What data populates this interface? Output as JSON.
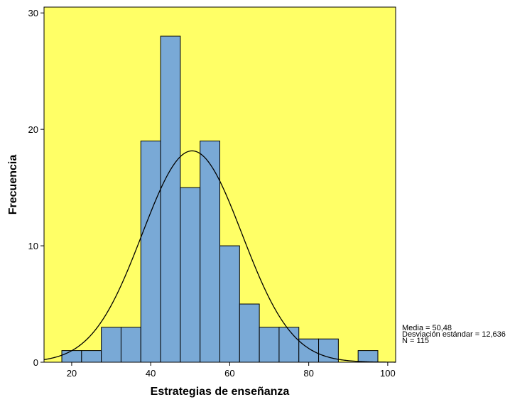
{
  "chart_data": {
    "type": "bar",
    "title": "",
    "xlabel": "Estrategias de enseñanza",
    "ylabel": "Frecuencia",
    "bin_width": 5,
    "bins": [
      {
        "start": 17.5,
        "end": 22.5,
        "count": 1
      },
      {
        "start": 22.5,
        "end": 27.5,
        "count": 1
      },
      {
        "start": 27.5,
        "end": 32.5,
        "count": 3
      },
      {
        "start": 32.5,
        "end": 37.5,
        "count": 3
      },
      {
        "start": 37.5,
        "end": 42.5,
        "count": 19
      },
      {
        "start": 42.5,
        "end": 47.5,
        "count": 28
      },
      {
        "start": 47.5,
        "end": 52.5,
        "count": 15
      },
      {
        "start": 52.5,
        "end": 57.5,
        "count": 19
      },
      {
        "start": 57.5,
        "end": 62.5,
        "count": 10
      },
      {
        "start": 62.5,
        "end": 67.5,
        "count": 5
      },
      {
        "start": 67.5,
        "end": 72.5,
        "count": 3
      },
      {
        "start": 72.5,
        "end": 77.5,
        "count": 3
      },
      {
        "start": 77.5,
        "end": 82.5,
        "count": 2
      },
      {
        "start": 82.5,
        "end": 87.5,
        "count": 2
      },
      {
        "start": 87.5,
        "end": 92.5,
        "count": 0
      },
      {
        "start": 92.5,
        "end": 97.5,
        "count": 1
      }
    ],
    "normal_curve": {
      "mean": 50.48,
      "sd": 12.636,
      "n": 115
    },
    "xlim": [
      13,
      102
    ],
    "ylim": [
      0,
      30.5
    ],
    "x_ticks": [
      "20",
      "40",
      "60",
      "80",
      "100"
    ],
    "y_ticks": [
      "0",
      "10",
      "20",
      "30"
    ],
    "stats_lines": [
      "Media = 50,48",
      "Desviación estándar = 12,636",
      "N = 115"
    ],
    "colors": {
      "plot_background": "#ffff66",
      "bar_fill": "#79a9d6",
      "bar_stroke": "#000000",
      "curve": "#000000"
    }
  }
}
